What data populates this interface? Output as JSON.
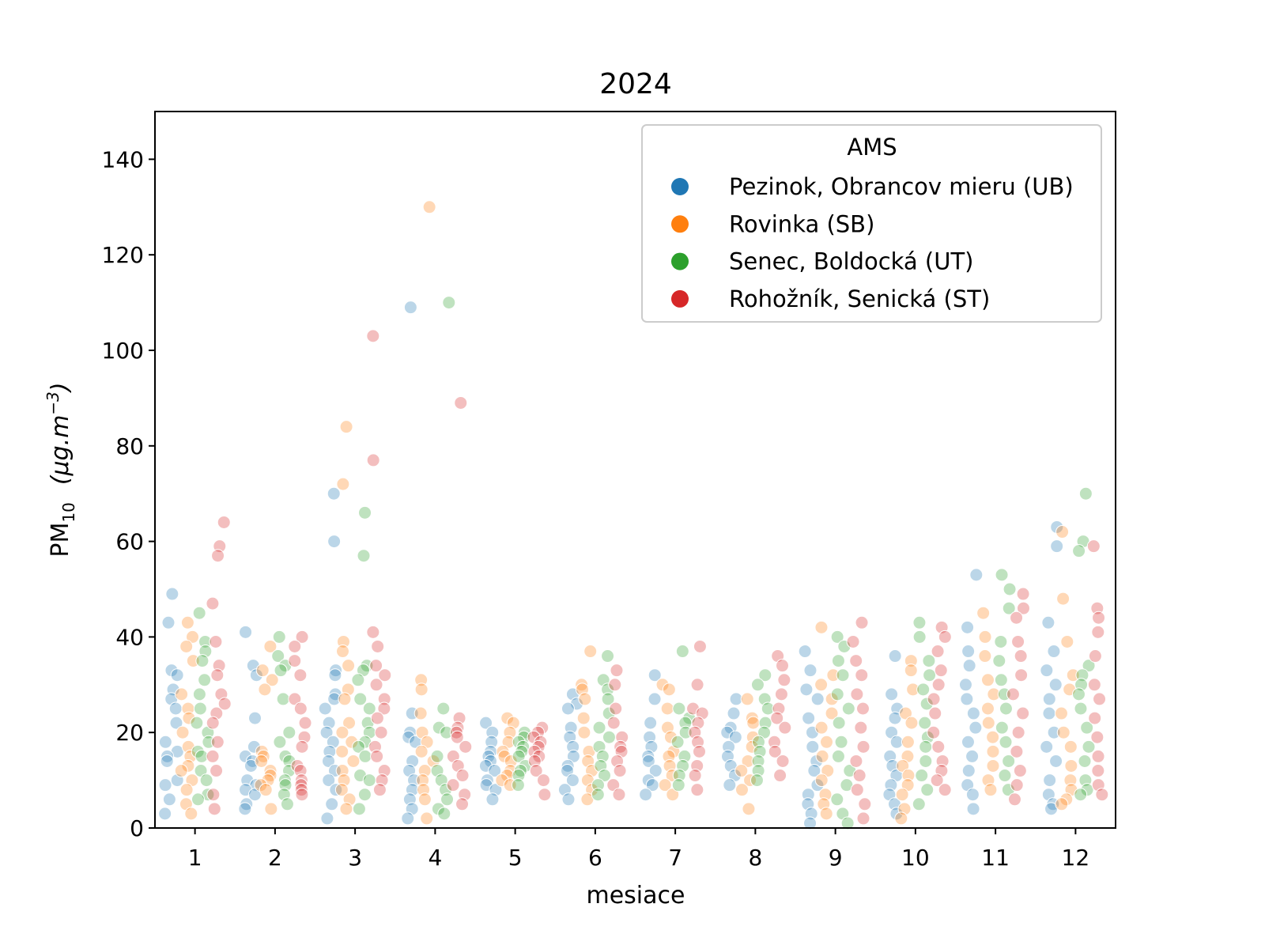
{
  "chart_data": {
    "type": "scatter",
    "subtype": "strip plot (dodged by station, jittered)",
    "title": "2024",
    "xlabel": "mesiace",
    "ylabel": {
      "base": "PM",
      "sub": "10",
      "unit": "(μg.m",
      "unit_sup": "−3",
      "close": ")"
    },
    "xlim": [
      0.5,
      12.5
    ],
    "ylim": [
      0,
      150
    ],
    "yticks": [
      0,
      20,
      40,
      60,
      80,
      100,
      120,
      140
    ],
    "categories": [
      "1",
      "2",
      "3",
      "4",
      "5",
      "6",
      "7",
      "8",
      "9",
      "10",
      "11",
      "12"
    ],
    "grid": false,
    "legend": {
      "title": "AMS",
      "placement": "top-right"
    },
    "series": [
      {
        "name": "Pezinok, Obrancov mieru (UB)",
        "color": "#1f77b4",
        "values": [
          [
            49,
            43,
            33,
            32,
            29,
            27,
            25,
            22,
            18,
            16,
            15,
            14,
            10,
            9,
            6,
            3
          ],
          [
            41,
            34,
            32,
            23,
            17,
            15,
            14,
            13,
            10,
            9,
            8,
            7,
            5,
            4
          ],
          [
            70,
            60,
            33,
            32,
            28,
            27,
            25,
            22,
            20,
            18,
            16,
            14,
            12,
            10,
            8,
            5,
            2
          ],
          [
            109,
            24,
            20,
            19,
            18,
            14,
            12,
            10,
            8,
            6,
            4,
            2
          ],
          [
            22,
            20,
            18,
            16,
            15,
            14,
            13,
            12,
            10,
            9,
            8,
            6
          ],
          [
            28,
            26,
            25,
            21,
            19,
            17,
            15,
            13,
            12,
            10,
            8,
            6
          ],
          [
            32,
            27,
            22,
            19,
            17,
            15,
            14,
            12,
            10,
            9,
            7
          ],
          [
            27,
            24,
            21,
            20,
            19,
            17,
            15,
            13,
            11,
            9
          ],
          [
            37,
            33,
            29,
            27,
            23,
            20,
            17,
            14,
            12,
            9,
            7,
            5,
            3,
            1
          ],
          [
            36,
            28,
            25,
            23,
            20,
            18,
            15,
            13,
            11,
            9,
            7,
            5,
            3
          ],
          [
            53,
            42,
            37,
            34,
            30,
            27,
            24,
            21,
            18,
            15,
            12,
            9,
            7,
            4
          ],
          [
            63,
            59,
            43,
            37,
            33,
            30,
            27,
            24,
            20,
            17,
            14,
            10,
            7,
            5,
            4
          ]
        ]
      },
      {
        "name": "Rovinka (SB)",
        "color": "#ff7f0e",
        "values": [
          [
            43,
            40,
            38,
            35,
            28,
            25,
            23,
            20,
            17,
            15,
            13,
            12,
            10,
            8,
            5,
            3
          ],
          [
            38,
            33,
            31,
            29,
            16,
            15,
            14,
            12,
            11,
            10,
            9,
            8,
            4
          ],
          [
            84,
            72,
            39,
            37,
            34,
            29,
            27,
            22,
            20,
            18,
            16,
            14,
            12,
            10,
            8,
            6,
            4
          ],
          [
            130,
            31,
            29,
            24,
            20,
            18,
            16,
            14,
            12,
            10,
            8,
            6,
            2
          ],
          [
            23,
            22,
            20,
            18,
            16,
            15,
            14,
            12,
            11,
            10,
            9
          ],
          [
            37,
            30,
            29,
            27,
            23,
            20,
            16,
            14,
            12,
            10,
            8,
            6
          ],
          [
            30,
            29,
            25,
            21,
            19,
            16,
            15,
            13,
            11,
            9,
            7
          ],
          [
            27,
            23,
            22,
            19,
            17,
            14,
            12,
            10,
            8,
            4
          ],
          [
            42,
            32,
            30,
            27,
            24,
            21,
            18,
            15,
            12,
            10,
            7,
            5,
            3
          ],
          [
            35,
            33,
            29,
            24,
            22,
            18,
            15,
            13,
            11,
            9,
            7,
            4,
            2
          ],
          [
            45,
            40,
            36,
            31,
            28,
            25,
            22,
            19,
            16,
            13,
            10,
            8
          ],
          [
            62,
            48,
            39,
            32,
            29,
            24,
            20,
            17,
            13,
            10,
            8,
            6,
            5
          ]
        ]
      },
      {
        "name": "Senec, Boldocká (UT)",
        "color": "#2ca02c",
        "values": [
          [
            45,
            39,
            37,
            35,
            31,
            28,
            25,
            22,
            20,
            18,
            16,
            15,
            12,
            10,
            7,
            6
          ],
          [
            40,
            36,
            34,
            33,
            27,
            20,
            18,
            15,
            14,
            12,
            10,
            9,
            7,
            5
          ],
          [
            66,
            57,
            34,
            33,
            31,
            27,
            25,
            22,
            20,
            18,
            17,
            15,
            11,
            10,
            7,
            4
          ],
          [
            110,
            25,
            21,
            20,
            15,
            12,
            10,
            8,
            6,
            4,
            3
          ],
          [
            20,
            19,
            18,
            17,
            16,
            15,
            13,
            12,
            11,
            9
          ],
          [
            36,
            31,
            29,
            27,
            24,
            21,
            19,
            17,
            15,
            13,
            11,
            9,
            7
          ],
          [
            37,
            25,
            23,
            22,
            20,
            18,
            15,
            13,
            11,
            9
          ],
          [
            32,
            30,
            27,
            25,
            22,
            20,
            18,
            16,
            14,
            12,
            10
          ],
          [
            40,
            38,
            35,
            32,
            28,
            25,
            22,
            18,
            15,
            12,
            9,
            6,
            3,
            1
          ],
          [
            43,
            40,
            35,
            32,
            29,
            26,
            22,
            19,
            17,
            14,
            11,
            8,
            5
          ],
          [
            53,
            50,
            46,
            39,
            35,
            31,
            28,
            25,
            21,
            18,
            14,
            11,
            8
          ],
          [
            70,
            60,
            58,
            34,
            32,
            30,
            28,
            25,
            21,
            17,
            14,
            10,
            8,
            7
          ]
        ]
      },
      {
        "name": "Rohožník, Senická (ST)",
        "color": "#d62728",
        "values": [
          [
            64,
            59,
            57,
            47,
            39,
            34,
            32,
            28,
            26,
            24,
            22,
            18,
            15,
            12,
            7,
            4
          ],
          [
            40,
            38,
            35,
            32,
            27,
            25,
            22,
            19,
            17,
            13,
            12,
            10,
            9,
            8,
            7
          ],
          [
            103,
            77,
            41,
            38,
            34,
            32,
            30,
            27,
            25,
            23,
            20,
            17,
            15,
            12,
            10,
            8
          ],
          [
            89,
            23,
            21,
            20,
            19,
            17,
            15,
            13,
            11,
            9,
            7,
            5
          ],
          [
            21,
            20,
            19,
            18,
            17,
            16,
            15,
            14,
            12,
            10,
            7
          ],
          [
            33,
            30,
            25,
            22,
            19,
            17,
            16,
            14,
            12,
            9,
            7
          ],
          [
            38,
            30,
            25,
            24,
            22,
            20,
            18,
            16,
            13,
            11,
            8
          ],
          [
            36,
            34,
            31,
            28,
            25,
            23,
            21,
            18,
            16,
            14,
            11
          ],
          [
            43,
            39,
            35,
            32,
            28,
            25,
            21,
            17,
            14,
            11,
            8,
            5,
            2
          ],
          [
            42,
            40,
            37,
            33,
            30,
            27,
            24,
            20,
            17,
            14,
            12,
            10,
            8
          ],
          [
            49,
            46,
            44,
            39,
            36,
            32,
            28,
            24,
            20,
            16,
            12,
            9,
            6
          ],
          [
            59,
            46,
            44,
            41,
            36,
            30,
            27,
            23,
            19,
            15,
            12,
            9,
            7
          ]
        ]
      }
    ]
  }
}
